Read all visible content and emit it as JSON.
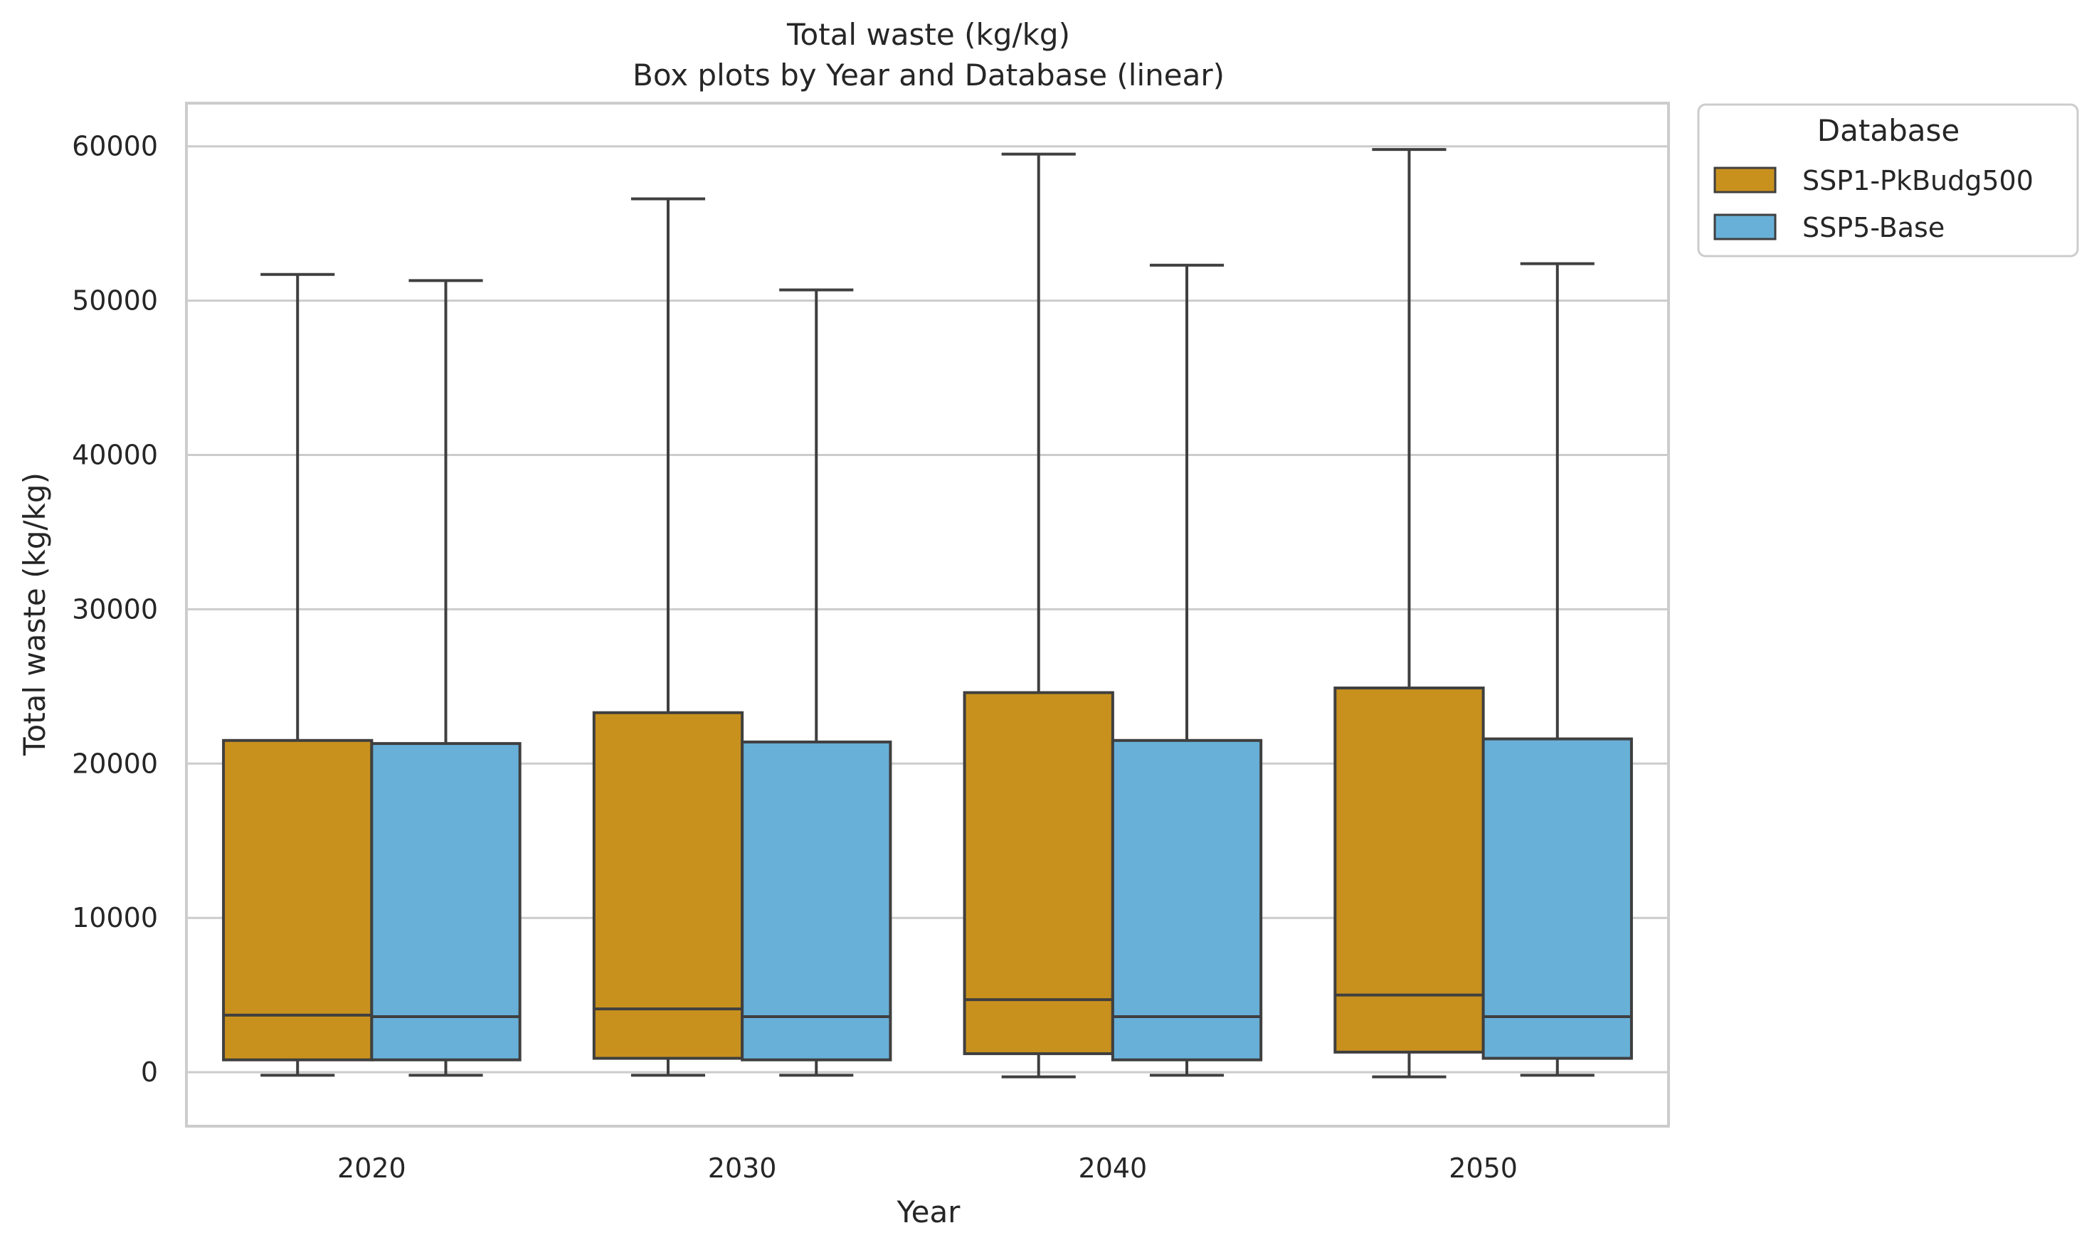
{
  "chart_data": {
    "type": "box",
    "title": "Total waste (kg/kg)",
    "subtitle": "Box plots by Year and Database (linear)",
    "xlabel": "Year",
    "ylabel": "Total waste (kg/kg)",
    "ylim": [
      -3500,
      62800
    ],
    "yticks": [
      0,
      10000,
      20000,
      30000,
      40000,
      50000,
      60000
    ],
    "ytick_labels": [
      "0",
      "10000",
      "20000",
      "30000",
      "40000",
      "50000",
      "60000"
    ],
    "categories": [
      "2020",
      "2030",
      "2040",
      "2050"
    ],
    "grid": "horizontal",
    "legend": {
      "title": "Database",
      "placement": "outside-top-right"
    },
    "series": [
      {
        "name": "SSP1-PkBudg500",
        "color": "#c8911e",
        "boxes": [
          {
            "whislo": -200,
            "q1": 800,
            "med": 3700,
            "q3": 21500,
            "whishi": 51700
          },
          {
            "whislo": -200,
            "q1": 900,
            "med": 4100,
            "q3": 23300,
            "whishi": 56600
          },
          {
            "whislo": -300,
            "q1": 1200,
            "med": 4700,
            "q3": 24600,
            "whishi": 59500
          },
          {
            "whislo": -300,
            "q1": 1300,
            "med": 5000,
            "q3": 24900,
            "whishi": 59800
          }
        ]
      },
      {
        "name": "SSP5-Base",
        "color": "#68b0d8",
        "boxes": [
          {
            "whislo": -200,
            "q1": 800,
            "med": 3600,
            "q3": 21300,
            "whishi": 51300
          },
          {
            "whislo": -200,
            "q1": 800,
            "med": 3600,
            "q3": 21400,
            "whishi": 50700
          },
          {
            "whislo": -200,
            "q1": 800,
            "med": 3600,
            "q3": 21500,
            "whishi": 52300
          },
          {
            "whislo": -200,
            "q1": 900,
            "med": 3600,
            "q3": 21600,
            "whishi": 52400
          }
        ]
      }
    ]
  }
}
